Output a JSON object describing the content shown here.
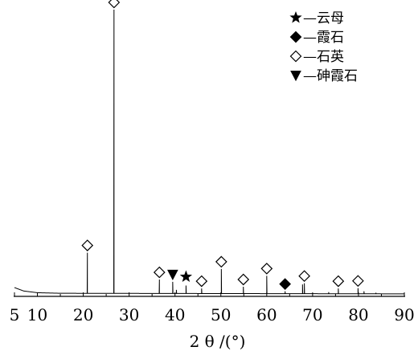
{
  "chart_data": {
    "type": "line",
    "title": "",
    "xlabel": "2 θ /(°)",
    "ylabel": "",
    "xlim": [
      5,
      90
    ],
    "ylim": [
      0,
      100
    ],
    "x_ticks": [
      5,
      10,
      20,
      30,
      40,
      50,
      60,
      70,
      80,
      90
    ],
    "grid": false,
    "legend_position": "top-right",
    "legend": [
      {
        "marker": "star",
        "label": "—云母"
      },
      {
        "marker": "diamond-filled",
        "label": "—霞石"
      },
      {
        "marker": "diamond-open",
        "label": "—石英"
      },
      {
        "marker": "triangle-down",
        "label": "—砷霞石"
      }
    ],
    "baseline": [
      [
        5,
        2.8
      ],
      [
        7,
        1.6
      ],
      [
        10,
        1.0
      ],
      [
        15,
        0.8
      ],
      [
        90,
        0.6
      ]
    ],
    "peaks": [
      {
        "x": 20.9,
        "y": 15
      },
      {
        "x": 26.7,
        "y": 100
      },
      {
        "x": 36.6,
        "y": 5.6
      },
      {
        "x": 39.5,
        "y": 4.8
      },
      {
        "x": 40.3,
        "y": 2.0
      },
      {
        "x": 42.4,
        "y": 3.5
      },
      {
        "x": 45.8,
        "y": 2.5
      },
      {
        "x": 50.1,
        "y": 9.3
      },
      {
        "x": 54.9,
        "y": 3.1
      },
      {
        "x": 60.0,
        "y": 6.9
      },
      {
        "x": 64.0,
        "y": 1.5
      },
      {
        "x": 67.8,
        "y": 3.9
      },
      {
        "x": 68.2,
        "y": 4.3
      },
      {
        "x": 73.5,
        "y": 1.2
      },
      {
        "x": 75.6,
        "y": 2.5
      },
      {
        "x": 79.9,
        "y": 2.6
      },
      {
        "x": 81.2,
        "y": 1.5
      },
      {
        "x": 83.8,
        "y": 1.0
      }
    ],
    "markers": [
      {
        "type": "diamond-open",
        "x": 20.9,
        "y": 15
      },
      {
        "type": "diamond-open",
        "x": 26.7,
        "y": 100
      },
      {
        "type": "diamond-open",
        "x": 36.6,
        "y": 5.6
      },
      {
        "type": "triangle-down",
        "x": 39.5,
        "y": 4.8
      },
      {
        "type": "star",
        "x": 42.4,
        "y": 3.5
      },
      {
        "type": "diamond-open",
        "x": 45.8,
        "y": 2.5
      },
      {
        "type": "diamond-open",
        "x": 50.1,
        "y": 9.3
      },
      {
        "type": "diamond-open",
        "x": 54.9,
        "y": 3.1
      },
      {
        "type": "diamond-open",
        "x": 60.0,
        "y": 6.9
      },
      {
        "type": "diamond-filled",
        "x": 64.0,
        "y": 1.5
      },
      {
        "type": "diamond-open",
        "x": 68.2,
        "y": 4.3
      },
      {
        "type": "diamond-open",
        "x": 75.6,
        "y": 2.5
      },
      {
        "type": "diamond-open",
        "x": 79.9,
        "y": 2.6
      }
    ]
  }
}
